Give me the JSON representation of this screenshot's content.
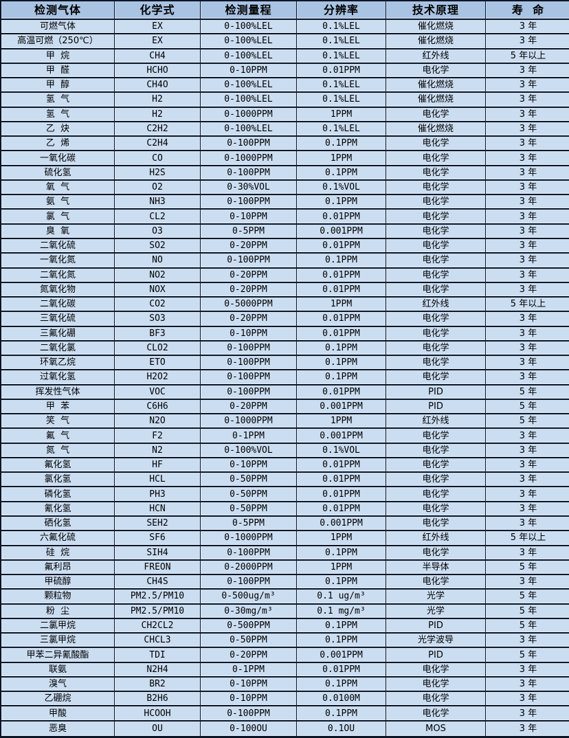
{
  "colors": {
    "header_bg": "#a9c3e3",
    "row_bg": "#cbddf1",
    "border": "#0b1526",
    "text": "#000000"
  },
  "table": {
    "columns": [
      "检测气体",
      "化学式",
      "检测量程",
      "分辨率",
      "技术原理",
      "寿  命"
    ],
    "rows": [
      [
        "可燃气体",
        "EX",
        "0-100%LEL",
        "0.1%LEL",
        "催化燃烧",
        "3 年"
      ],
      [
        "高温可燃（250℃）",
        "EX",
        "0-100%LEL",
        "0.1%LEL",
        "催化燃烧",
        "3 年"
      ],
      [
        "甲  烷",
        "CH4",
        "0-100%LEL",
        "0.1%LEL",
        "红外线",
        "5 年以上"
      ],
      [
        "甲  醛",
        "HCHO",
        "0-10PPM",
        "0.01PPM",
        "电化学",
        "3 年"
      ],
      [
        "甲  醇",
        "CH4O",
        "0-100%LEL",
        "0.1%LEL",
        "催化燃烧",
        "3 年"
      ],
      [
        "氢  气",
        "H2",
        "0-100%LEL",
        "0.1%LEL",
        "催化燃烧",
        "3 年"
      ],
      [
        "氢  气",
        "H2",
        "0-1000PPM",
        "1PPM",
        "电化学",
        "3 年"
      ],
      [
        "乙  炔",
        "C2H2",
        "0-100%LEL",
        "0.1%LEL",
        "催化燃烧",
        "3 年"
      ],
      [
        "乙  烯",
        "C2H4",
        "0-100PPM",
        "0.1PPM",
        "电化学",
        "3 年"
      ],
      [
        "一氧化碳",
        "CO",
        "0-1000PPM",
        "1PPM",
        "电化学",
        "3 年"
      ],
      [
        "硫化氢",
        "H2S",
        "0-100PPM",
        "0.1PPM",
        "电化学",
        "3 年"
      ],
      [
        "氧  气",
        "O2",
        "0-30%VOL",
        "0.1%VOL",
        "电化学",
        "3 年"
      ],
      [
        "氨  气",
        "NH3",
        "0-100PPM",
        "0.1PPM",
        "电化学",
        "3 年"
      ],
      [
        "氯  气",
        "CL2",
        "0-10PPM",
        "0.01PPM",
        "电化学",
        "3 年"
      ],
      [
        "臭  氧",
        "O3",
        "0-5PPM",
        "0.001PPM",
        "电化学",
        "3 年"
      ],
      [
        "二氧化硫",
        "SO2",
        "0-20PPM",
        "0.01PPM",
        "电化学",
        "3 年"
      ],
      [
        "一氧化氮",
        "NO",
        "0-100PPM",
        "0.1PPM",
        "电化学",
        "3 年"
      ],
      [
        "二氧化氮",
        "NO2",
        "0-20PPM",
        "0.01PPM",
        "电化学",
        "3 年"
      ],
      [
        "氮氧化物",
        "NOX",
        "0-20PPM",
        "0.01PPM",
        "电化学",
        "3 年"
      ],
      [
        "二氧化碳",
        "CO2",
        "0-5000PPM",
        "1PPM",
        "红外线",
        "5 年以上"
      ],
      [
        "三氧化硫",
        "SO3",
        "0-20PPM",
        "0.01PPM",
        "电化学",
        "3 年"
      ],
      [
        "三氟化硼",
        "BF3",
        "0-10PPM",
        "0.01PPM",
        "电化学",
        "3 年"
      ],
      [
        "二氧化氯",
        "CLO2",
        "0-100PPM",
        "0.1PPM",
        "电化学",
        "3 年"
      ],
      [
        "环氧乙烷",
        "ETO",
        "0-100PPM",
        "0.1PPM",
        "电化学",
        "3 年"
      ],
      [
        "过氧化氢",
        "H2O2",
        "0-100PPM",
        "0.1PPM",
        "电化学",
        "3 年"
      ],
      [
        "挥发性气体",
        "VOC",
        "0-100PPM",
        "0.01PPM",
        "PID",
        "5 年"
      ],
      [
        "甲  苯",
        "C6H6",
        "0-20PPM",
        "0.001PPM",
        "PID",
        "5 年"
      ],
      [
        "笑  气",
        "N2O",
        "0-1000PPM",
        "1PPM",
        "红外线",
        "5 年"
      ],
      [
        "氟  气",
        "F2",
        "0-1PPM",
        "0.001PPM",
        "电化学",
        "3 年"
      ],
      [
        "氮  气",
        "N2",
        "0-100%VOL",
        "0.1%VOL",
        "电化学",
        "3 年"
      ],
      [
        "氟化氢",
        "HF",
        "0-10PPM",
        "0.01PPM",
        "电化学",
        "3 年"
      ],
      [
        "氯化氢",
        "HCL",
        "0-50PPM",
        "0.01PPM",
        "电化学",
        "3 年"
      ],
      [
        "磷化氢",
        "PH3",
        "0-50PPM",
        "0.01PPM",
        "电化学",
        "3 年"
      ],
      [
        "氰化氢",
        "HCN",
        "0-50PPM",
        "0.01PPM",
        "电化学",
        "3 年"
      ],
      [
        "硒化氢",
        "SEH2",
        "0-5PPM",
        "0.001PPM",
        "电化学",
        "3 年"
      ],
      [
        "六氟化硫",
        "SF6",
        "0-1000PPM",
        "1PPM",
        "红外线",
        "5 年以上"
      ],
      [
        "硅  烷",
        "SIH4",
        "0-100PPM",
        "0.1PPM",
        "电化学",
        "3 年"
      ],
      [
        "氟利昂",
        "FREON",
        "0-2000PPM",
        "1PPM",
        "半导体",
        "5 年"
      ],
      [
        "甲硫醇",
        "CH4S",
        "0-100PPM",
        "0.1PPM",
        "电化学",
        "3 年"
      ],
      [
        "颗粒物",
        "PM2.5/PM10",
        "0-500ug/m³",
        "0.1 ug/m³",
        "光学",
        "5 年"
      ],
      [
        "粉  尘",
        "PM2.5/PM10",
        "0-30mg/m³",
        "0.1 mg/m³",
        "光学",
        "5 年"
      ],
      [
        "二氯甲烷",
        "CH2CL2",
        "0-500PPM",
        "0.1PPM",
        "PID",
        "5 年"
      ],
      [
        "三氯甲烷",
        "CHCL3",
        "0-50PPM",
        "0.1PPM",
        "光学波导",
        "3 年"
      ],
      [
        "甲苯二异氰酸酯",
        "TDI",
        "0-20PPM",
        "0.001PPM",
        "PID",
        "5 年"
      ],
      [
        "联氨",
        "N2H4",
        "0-1PPM",
        "0.01PPM",
        "电化学",
        "3 年"
      ],
      [
        "溴气",
        "BR2",
        "0-10PPM",
        "0.1PPM",
        "电化学",
        "3 年"
      ],
      [
        "乙硼烷",
        "B2H6",
        "0-10PPM",
        "0.0100M",
        "电化学",
        "3 年"
      ],
      [
        "甲酸",
        "HCOOH",
        "0-100PPM",
        "0.1PPM",
        "电化学",
        "3 年"
      ],
      [
        "恶臭",
        "OU",
        "0-100OU",
        "0.1OU",
        "MOS",
        "3 年"
      ]
    ]
  }
}
